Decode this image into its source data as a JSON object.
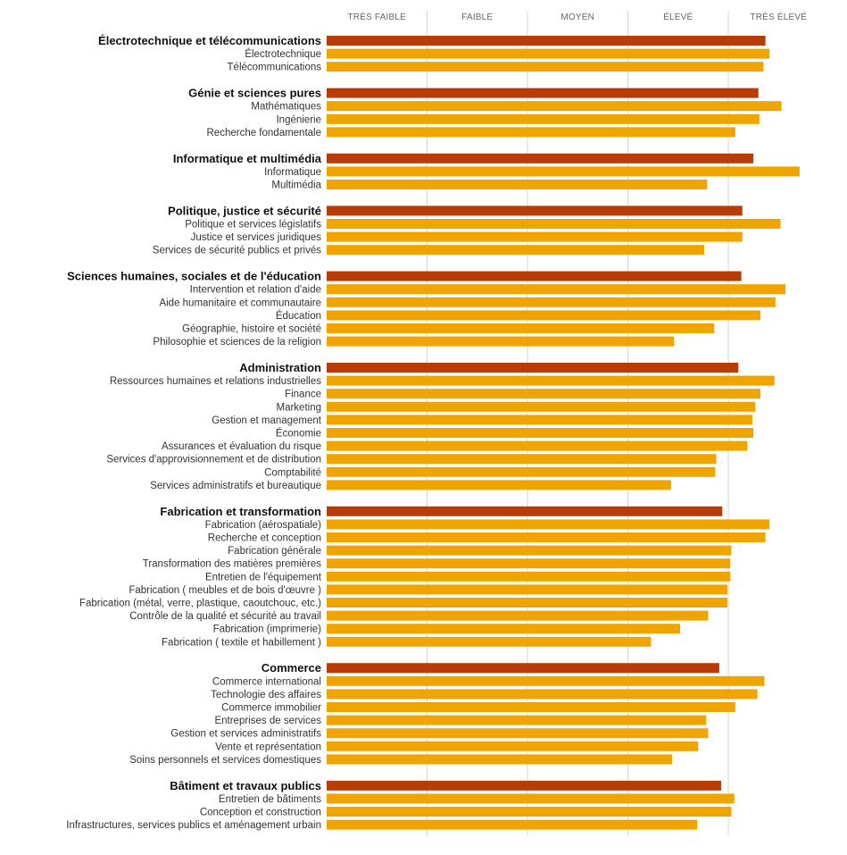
{
  "chart_data": {
    "type": "bar",
    "orientation": "horizontal",
    "xlim": [
      0,
      5
    ],
    "x_tick_labels": [
      "TRÈS FAIBLE",
      "FAIBLE",
      "MOYEN",
      "ÉLEVÉ",
      "TRÈS ÉLEVÉ"
    ],
    "colors": {
      "group_bar": "#b83c08",
      "sub_bar": "#f0a400",
      "grid": "#d4d4d4"
    },
    "groups": [
      {
        "label": "Électrotechnique et télécommunications",
        "value": 4.37,
        "items": [
          {
            "label": "Électrotechnique",
            "value": 4.41
          },
          {
            "label": "Télécommunications",
            "value": 4.35
          }
        ]
      },
      {
        "label": "Génie et sciences pures",
        "value": 4.3,
        "items": [
          {
            "label": "Mathématiques",
            "value": 4.53
          },
          {
            "label": "Ingénierie",
            "value": 4.31
          },
          {
            "label": "Recherche fondamentale",
            "value": 4.07
          }
        ]
      },
      {
        "label": "Informatique et multimédia",
        "value": 4.25,
        "items": [
          {
            "label": "Informatique",
            "value": 4.71
          },
          {
            "label": "Multimédia",
            "value": 3.79
          }
        ]
      },
      {
        "label": "Politique, justice et sécurité",
        "value": 4.14,
        "items": [
          {
            "label": "Politique et services législatifs",
            "value": 4.52
          },
          {
            "label": "Justice et services juridiques",
            "value": 4.14
          },
          {
            "label": "Services de sécurité publics et privés",
            "value": 3.76
          }
        ]
      },
      {
        "label": "Sciences humaines, sociales et de l'éducation",
        "value": 4.13,
        "items": [
          {
            "label": "Intervention et relation d'aide",
            "value": 4.57
          },
          {
            "label": "Aide humanitaire et communautaire",
            "value": 4.47
          },
          {
            "label": "Éducation",
            "value": 4.32
          },
          {
            "label": "Géographie, histoire et société",
            "value": 3.86
          },
          {
            "label": "Philosophie et sciences de la religion",
            "value": 3.46
          }
        ]
      },
      {
        "label": "Administration",
        "value": 4.1,
        "items": [
          {
            "label": "Ressources humaines et relations industrielles",
            "value": 4.46
          },
          {
            "label": "Finance",
            "value": 4.32
          },
          {
            "label": "Marketing",
            "value": 4.27
          },
          {
            "label": "Gestion et management",
            "value": 4.24
          },
          {
            "label": "Économie",
            "value": 4.25
          },
          {
            "label": "Assurances et évaluation du risque",
            "value": 4.19
          },
          {
            "label": "Services d'approvisionnement et de distribution",
            "value": 3.88
          },
          {
            "label": "Comptabilité",
            "value": 3.87
          },
          {
            "label": "Services administratifs et bureautique",
            "value": 3.43
          }
        ]
      },
      {
        "label": "Fabrication et transformation",
        "value": 3.94,
        "items": [
          {
            "label": "Fabrication (aérospatiale)",
            "value": 4.41
          },
          {
            "label": "Recherche et conception",
            "value": 4.37
          },
          {
            "label": "Fabrication générale",
            "value": 4.03
          },
          {
            "label": "Transformation des matières premières",
            "value": 4.02
          },
          {
            "label": "Entretien de l'équipement",
            "value": 4.02
          },
          {
            "label": "Fabrication ( meubles et de bois d'œuvre )",
            "value": 3.99
          },
          {
            "label": "Fabrication (métal, verre, plastique, caoutchouc, etc.)",
            "value": 3.99
          },
          {
            "label": "Contrôle de la qualité et sécurité au travail",
            "value": 3.8
          },
          {
            "label": "Fabrication (imprimerie)",
            "value": 3.52
          },
          {
            "label": "Fabrication ( textile et habillement )",
            "value": 3.23
          }
        ]
      },
      {
        "label": "Commerce",
        "value": 3.91,
        "items": [
          {
            "label": "Commerce international",
            "value": 4.36
          },
          {
            "label": "Technologie des affaires",
            "value": 4.29
          },
          {
            "label": "Commerce immobilier",
            "value": 4.07
          },
          {
            "label": "Entreprises de services",
            "value": 3.78
          },
          {
            "label": "Gestion et services administratifs",
            "value": 3.8
          },
          {
            "label": "Vente et représentation",
            "value": 3.7
          },
          {
            "label": "Soins personnels et services domestiques",
            "value": 3.44
          }
        ]
      },
      {
        "label": "Bâtiment et travaux publics",
        "value": 3.93,
        "items": [
          {
            "label": "Entretien de bâtiments",
            "value": 4.06
          },
          {
            "label": "Conception et construction",
            "value": 4.03
          },
          {
            "label": "Infrastructures, services publics et aménagement urbain",
            "value": 3.69
          }
        ]
      }
    ]
  }
}
